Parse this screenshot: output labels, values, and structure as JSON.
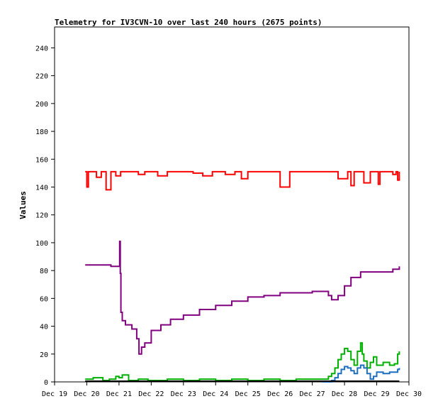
{
  "chart_data": {
    "type": "line",
    "title": "Telemetry for IV3CVN-10 over last 240 hours (2675 points)",
    "xlabel": "",
    "ylabel": "Values",
    "x_ticks": [
      "Dec 19",
      "Dec 20",
      "Dec 21",
      "Dec 22",
      "Dec 23",
      "Dec 24",
      "Dec 25",
      "Dec 26",
      "Dec 27",
      "Dec 28",
      "Dec 29",
      "Dec 30"
    ],
    "x_unit": "days since Dec 19 00:00",
    "xlim": [
      0,
      11
    ],
    "y_ticks": [
      0,
      20,
      40,
      60,
      80,
      100,
      120,
      140,
      160,
      180,
      200,
      220,
      240
    ],
    "ylim": [
      0,
      255
    ],
    "grid": false,
    "legend": "none",
    "series": [
      {
        "color": "#ff0000",
        "x": [
          0.95,
          1.0,
          1.05,
          1.2,
          1.3,
          1.45,
          1.6,
          1.75,
          1.9,
          2.05,
          2.3,
          2.6,
          2.8,
          3.0,
          3.2,
          3.5,
          3.8,
          4.0,
          4.3,
          4.6,
          4.9,
          5.0,
          5.3,
          5.6,
          5.8,
          6.0,
          6.3,
          6.6,
          6.9,
          7.0,
          7.3,
          7.6,
          7.9,
          8.2,
          8.5,
          8.8,
          9.1,
          9.2,
          9.3,
          9.5,
          9.6,
          9.8,
          10.0,
          10.05,
          10.1,
          10.3,
          10.5,
          10.6,
          10.65,
          10.7
        ],
        "y": [
          151,
          140,
          151,
          151,
          147,
          151,
          138,
          151,
          148,
          151,
          151,
          149,
          151,
          151,
          148,
          151,
          151,
          151,
          150,
          148,
          151,
          151,
          149,
          151,
          146,
          151,
          151,
          151,
          151,
          140,
          151,
          151,
          151,
          151,
          151,
          146,
          151,
          141,
          151,
          151,
          143,
          151,
          151,
          142,
          151,
          151,
          149,
          151,
          145,
          151
        ]
      },
      {
        "color": "#800080",
        "x": [
          0.95,
          1.3,
          1.6,
          1.75,
          1.9,
          2.0,
          2.02,
          2.04,
          2.06,
          2.1,
          2.2,
          2.4,
          2.55,
          2.62,
          2.7,
          2.8,
          3.0,
          3.3,
          3.6,
          4.0,
          4.5,
          5.0,
          5.5,
          6.0,
          6.5,
          7.0,
          7.5,
          8.0,
          8.3,
          8.5,
          8.6,
          8.7,
          8.8,
          9.0,
          9.2,
          9.5,
          10.0,
          10.5,
          10.7
        ],
        "y": [
          84,
          84,
          84,
          83,
          83,
          83,
          101,
          78,
          50,
          44,
          41,
          38,
          31,
          20,
          25,
          28,
          37,
          41,
          45,
          48,
          52,
          55,
          58,
          61,
          62,
          64,
          64,
          65,
          65,
          62,
          59,
          59,
          62,
          69,
          75,
          79,
          79,
          81,
          83
        ]
      },
      {
        "color": "#00b000",
        "x": [
          0.95,
          1.2,
          1.5,
          1.7,
          1.9,
          2.0,
          2.1,
          2.3,
          2.6,
          2.9,
          3.5,
          4.0,
          4.5,
          5.0,
          5.5,
          6.0,
          6.5,
          7.0,
          7.5,
          8.0,
          8.3,
          8.5,
          8.6,
          8.7,
          8.8,
          8.9,
          9.0,
          9.1,
          9.2,
          9.3,
          9.4,
          9.5,
          9.55,
          9.6,
          9.7,
          9.8,
          9.9,
          10.0,
          10.2,
          10.4,
          10.55,
          10.65,
          10.7
        ],
        "y": [
          2,
          3,
          1,
          2,
          4,
          3,
          5,
          1,
          2,
          1,
          2,
          1,
          2,
          1,
          2,
          1,
          2,
          1,
          2,
          2,
          2,
          4,
          6,
          10,
          16,
          20,
          24,
          22,
          16,
          12,
          22,
          28,
          20,
          15,
          10,
          14,
          18,
          12,
          14,
          12,
          13,
          20,
          22
        ]
      },
      {
        "color": "#1e6fc0",
        "x": [
          8.3,
          8.5,
          8.6,
          8.7,
          8.8,
          8.9,
          9.0,
          9.1,
          9.2,
          9.3,
          9.4,
          9.5,
          9.6,
          9.7,
          9.8,
          9.9,
          10.0,
          10.2,
          10.4,
          10.55,
          10.65,
          10.7
        ],
        "y": [
          0,
          0,
          1,
          3,
          6,
          9,
          11,
          10,
          8,
          6,
          10,
          12,
          10,
          6,
          2,
          4,
          7,
          6,
          7,
          7,
          9,
          10
        ]
      },
      {
        "color": "#000000",
        "x": [
          0.95,
          10.7
        ],
        "y": [
          0.5,
          0.5
        ]
      }
    ]
  }
}
